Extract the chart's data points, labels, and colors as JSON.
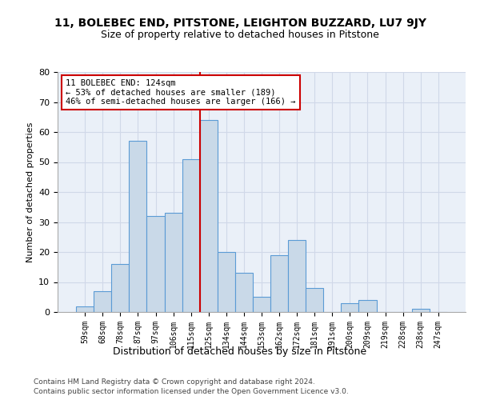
{
  "title": "11, BOLEBEC END, PITSTONE, LEIGHTON BUZZARD, LU7 9JY",
  "subtitle": "Size of property relative to detached houses in Pitstone",
  "xlabel": "Distribution of detached houses by size in Pitstone",
  "ylabel": "Number of detached properties",
  "categories": [
    "59sqm",
    "68sqm",
    "78sqm",
    "87sqm",
    "97sqm",
    "106sqm",
    "115sqm",
    "125sqm",
    "134sqm",
    "144sqm",
    "153sqm",
    "162sqm",
    "172sqm",
    "181sqm",
    "191sqm",
    "200sqm",
    "209sqm",
    "219sqm",
    "228sqm",
    "238sqm",
    "247sqm"
  ],
  "values": [
    2,
    7,
    16,
    57,
    32,
    33,
    51,
    64,
    20,
    13,
    5,
    19,
    24,
    8,
    0,
    3,
    4,
    0,
    0,
    1,
    0
  ],
  "bar_color": "#c9d9e8",
  "bar_edge_color": "#5b9bd5",
  "marker_line_index": 7,
  "marker_line_color": "#cc0000",
  "annotation_text": "11 BOLEBEC END: 124sqm\n← 53% of detached houses are smaller (189)\n46% of semi-detached houses are larger (166) →",
  "annotation_box_color": "#ffffff",
  "annotation_box_edge_color": "#cc0000",
  "ylim": [
    0,
    80
  ],
  "yticks": [
    0,
    10,
    20,
    30,
    40,
    50,
    60,
    70,
    80
  ],
  "grid_color": "#d0d8e8",
  "background_color": "#eaf0f8",
  "footer_line1": "Contains HM Land Registry data © Crown copyright and database right 2024.",
  "footer_line2": "Contains public sector information licensed under the Open Government Licence v3.0."
}
